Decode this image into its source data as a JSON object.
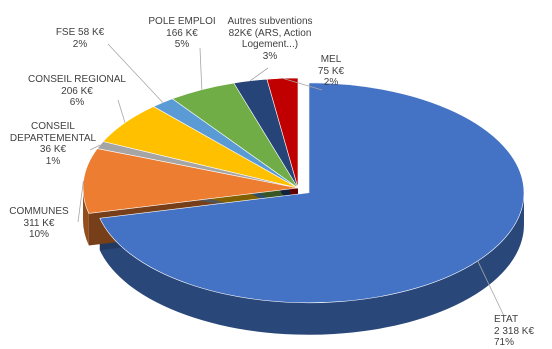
{
  "chart_data": {
    "type": "pie",
    "title": "",
    "slices": [
      {
        "id": "etat",
        "name": "ETAT",
        "value_label": "2 318 K€",
        "value": 2318,
        "percent_label": "71%",
        "color": "#4472C4",
        "exploded": true
      },
      {
        "id": "communes",
        "name": "COMMUNES",
        "value_label": "311 K€",
        "value": 311,
        "percent_label": "10%",
        "color": "#ED7D31",
        "exploded": false
      },
      {
        "id": "departemental",
        "name": "CONSEIL DEPARTEMENTAL",
        "name_lines": [
          "CONSEIL",
          "DEPARTEMENTAL"
        ],
        "value_label": "36 K€",
        "value": 36,
        "percent_label": "1%",
        "color": "#A5A5A5",
        "exploded": false
      },
      {
        "id": "regional",
        "name": "CONSEIL REGIONAL",
        "value_label": "206 K€",
        "value": 206,
        "percent_label": "6%",
        "color": "#FFC000",
        "exploded": false
      },
      {
        "id": "fse",
        "name": "FSE",
        "value_label": "58 K€",
        "value": 58,
        "percent_label": "2%",
        "color": "#5B9BD5",
        "exploded": false
      },
      {
        "id": "pole_emploi",
        "name": "POLE EMPLOI",
        "value_label": "166 K€",
        "value": 166,
        "percent_label": "5%",
        "color": "#70AD47",
        "exploded": false
      },
      {
        "id": "autres",
        "name": "Autres subventions",
        "value_label": "82K€ (ARS, Action Logement...)",
        "value_lines": [
          "82K€ (ARS, Action",
          "Logement...)"
        ],
        "value": 82,
        "percent_label": "3%",
        "color": "#264478",
        "exploded": false
      },
      {
        "id": "mel",
        "name": "MEL",
        "value_label": "75 K€",
        "value": 75,
        "percent_label": "2%",
        "color": "#C00000",
        "exploded": false
      }
    ],
    "style": "3d-exploded",
    "legend": "none"
  }
}
